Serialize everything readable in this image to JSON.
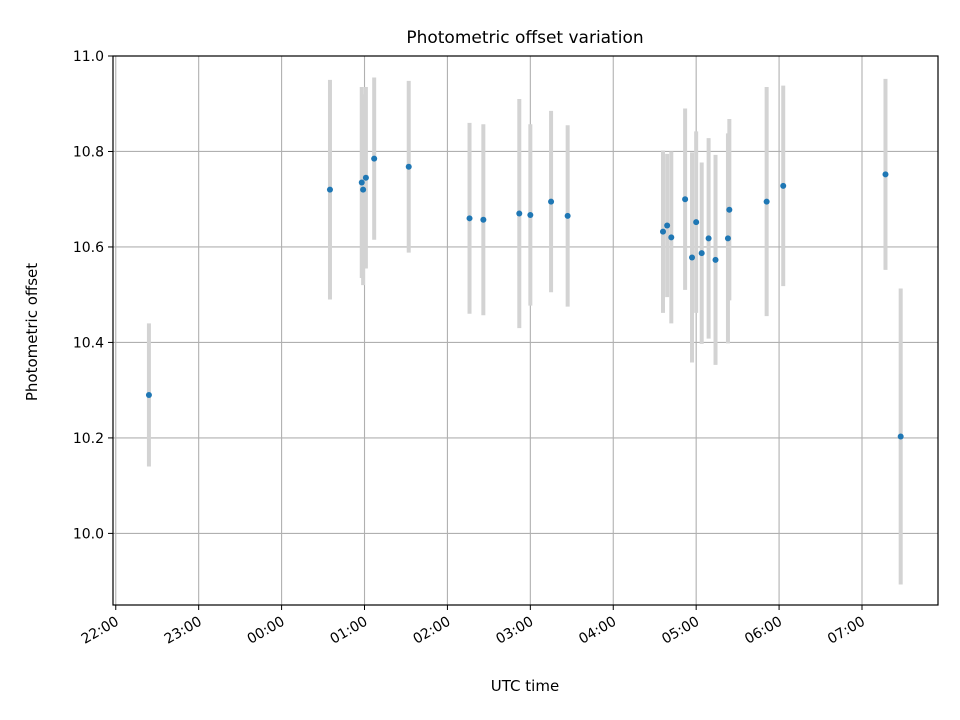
{
  "chart_data": {
    "type": "scatter",
    "title": "Photometric offset variation",
    "xlabel": "UTC time",
    "ylabel": "Photometric offset",
    "x_axis_type": "time",
    "xlim": [
      "2023-01-01 21:58",
      "2023-01-02 07:55"
    ],
    "ylim": [
      9.85,
      11.0
    ],
    "x_ticks": [
      "2023-01-01 22:00",
      "2023-01-01 23:00",
      "2023-01-02 00:00",
      "2023-01-02 01:00",
      "2023-01-02 02:00",
      "2023-01-02 03:00",
      "2023-01-02 04:00",
      "2023-01-02 05:00",
      "2023-01-02 06:00",
      "2023-01-02 07:00"
    ],
    "x_tick_labels": [
      "22:00",
      "23:00",
      "00:00",
      "01:00",
      "02:00",
      "03:00",
      "04:00",
      "05:00",
      "06:00",
      "07:00"
    ],
    "y_ticks": [
      10.0,
      10.2,
      10.4,
      10.6,
      10.8,
      11.0
    ],
    "y_tick_labels": [
      "10.0",
      "10.2",
      "10.4",
      "10.6",
      "10.8",
      "11.0"
    ],
    "grid": true,
    "error_bars": true,
    "point_color": "#1f77b4",
    "errorbar_color": "#d3d3d3",
    "points": [
      {
        "t": "2023-01-01 22:24",
        "y": 10.29,
        "err": 0.15
      },
      {
        "t": "2023-01-02 00:35",
        "y": 10.72,
        "err": 0.23
      },
      {
        "t": "2023-01-02 00:58",
        "y": 10.735,
        "err": 0.2
      },
      {
        "t": "2023-01-02 00:59",
        "y": 10.72,
        "err": 0.2
      },
      {
        "t": "2023-01-02 01:01",
        "y": 10.745,
        "err": 0.19
      },
      {
        "t": "2023-01-02 01:07",
        "y": 10.785,
        "err": 0.17
      },
      {
        "t": "2023-01-02 01:32",
        "y": 10.768,
        "err": 0.18
      },
      {
        "t": "2023-01-02 02:16",
        "y": 10.66,
        "err": 0.2
      },
      {
        "t": "2023-01-02 02:26",
        "y": 10.657,
        "err": 0.2
      },
      {
        "t": "2023-01-02 02:52",
        "y": 10.67,
        "err": 0.24
      },
      {
        "t": "2023-01-02 03:00",
        "y": 10.667,
        "err": 0.19
      },
      {
        "t": "2023-01-02 03:15",
        "y": 10.695,
        "err": 0.19
      },
      {
        "t": "2023-01-02 03:27",
        "y": 10.665,
        "err": 0.19
      },
      {
        "t": "2023-01-02 04:36",
        "y": 10.632,
        "err": 0.17
      },
      {
        "t": "2023-01-02 04:39",
        "y": 10.645,
        "err": 0.15
      },
      {
        "t": "2023-01-02 04:42",
        "y": 10.62,
        "err": 0.18
      },
      {
        "t": "2023-01-02 04:52",
        "y": 10.7,
        "err": 0.19
      },
      {
        "t": "2023-01-02 04:57",
        "y": 10.578,
        "err": 0.22
      },
      {
        "t": "2023-01-02 05:00",
        "y": 10.652,
        "err": 0.19
      },
      {
        "t": "2023-01-02 05:04",
        "y": 10.587,
        "err": 0.19
      },
      {
        "t": "2023-01-02 05:09",
        "y": 10.618,
        "err": 0.21
      },
      {
        "t": "2023-01-02 05:14",
        "y": 10.573,
        "err": 0.22
      },
      {
        "t": "2023-01-02 05:23",
        "y": 10.618,
        "err": 0.22
      },
      {
        "t": "2023-01-02 05:24",
        "y": 10.678,
        "err": 0.19
      },
      {
        "t": "2023-01-02 05:51",
        "y": 10.695,
        "err": 0.24
      },
      {
        "t": "2023-01-02 06:03",
        "y": 10.728,
        "err": 0.21
      },
      {
        "t": "2023-01-02 07:17",
        "y": 10.752,
        "err": 0.2
      },
      {
        "t": "2023-01-02 07:28",
        "y": 10.203,
        "err": 0.31
      }
    ]
  }
}
